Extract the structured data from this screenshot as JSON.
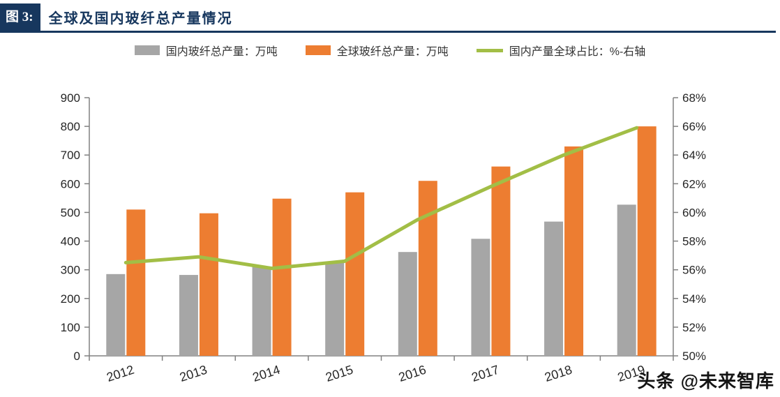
{
  "header": {
    "figure_label": "图 3:",
    "title": "全球及国内玻纤总产量情况"
  },
  "colors": {
    "navy": "#17375E",
    "gray_bar": "#A6A6A6",
    "orange_bar": "#ED7D31",
    "green_line": "#A2BE46",
    "axis": "#808080",
    "tick_text": "#262626"
  },
  "watermark": {
    "text": "头条 @未来智库"
  },
  "chart_data": {
    "type": "bar",
    "subtype": "grouped-bars-with-line",
    "title": "全球及国内玻纤总产量情况",
    "categories": [
      "2012",
      "2013",
      "2014",
      "2015",
      "2016",
      "2017",
      "2018",
      "2019"
    ],
    "series": [
      {
        "name": "国内玻纤总产量：万吨",
        "type": "bar",
        "axis": "left",
        "color": "#A6A6A6",
        "values": [
          285,
          282,
          310,
          325,
          362,
          408,
          468,
          527
        ]
      },
      {
        "name": "全球玻纤总产量：万吨",
        "type": "bar",
        "axis": "left",
        "color": "#ED7D31",
        "values": [
          510,
          497,
          548,
          570,
          610,
          660,
          730,
          800
        ]
      },
      {
        "name": "国内产量全球占比：%-右轴",
        "type": "line",
        "axis": "right",
        "color": "#A2BE46",
        "values": [
          56.5,
          56.9,
          56.1,
          56.6,
          59.5,
          61.8,
          64.0,
          65.9
        ]
      }
    ],
    "left_axis": {
      "min": 0,
      "max": 900,
      "step": 100,
      "ticks": [
        0,
        100,
        200,
        300,
        400,
        500,
        600,
        700,
        800,
        900
      ],
      "suffix": ""
    },
    "right_axis": {
      "min": 50,
      "max": 68,
      "step": 2,
      "ticks": [
        50,
        52,
        54,
        56,
        58,
        60,
        62,
        64,
        66,
        68
      ],
      "suffix": "%"
    },
    "grid": false,
    "legend_position": "top"
  }
}
